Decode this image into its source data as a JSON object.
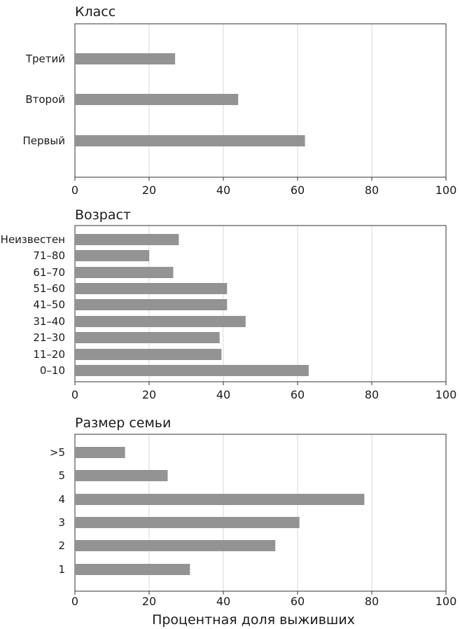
{
  "chart_data": [
    {
      "type": "bar",
      "orientation": "horizontal",
      "title": "Класс",
      "categories": [
        "Первый",
        "Второй",
        "Третий"
      ],
      "values": [
        62,
        44,
        27
      ],
      "xlim": [
        0,
        100
      ],
      "xticks": [
        "0",
        "20",
        "40",
        "60",
        "80",
        "100"
      ],
      "grid": true,
      "bar_color": "#939393"
    },
    {
      "type": "bar",
      "orientation": "horizontal",
      "title": "Возраст",
      "categories": [
        "0–10",
        "11–20",
        "21–30",
        "31–40",
        "41–50",
        "51–60",
        "61–70",
        "71–80",
        "Неизвестен"
      ],
      "values": [
        63,
        39.5,
        39,
        46,
        41,
        41,
        26.5,
        20,
        28
      ],
      "xlim": [
        0,
        100
      ],
      "xticks": [
        "0",
        "20",
        "40",
        "60",
        "80",
        "100"
      ],
      "grid": true,
      "bar_color": "#939393"
    },
    {
      "type": "bar",
      "orientation": "horizontal",
      "title": "Размер семьи",
      "categories": [
        "1",
        "2",
        "3",
        "4",
        "5",
        ">5"
      ],
      "values": [
        31,
        54,
        60.5,
        78,
        25,
        13.5
      ],
      "xlim": [
        0,
        100
      ],
      "xticks": [
        "0",
        "20",
        "40",
        "60",
        "80",
        "100"
      ],
      "xlabel": "Процентная доля выживших",
      "grid": true,
      "bar_color": "#939393"
    }
  ]
}
